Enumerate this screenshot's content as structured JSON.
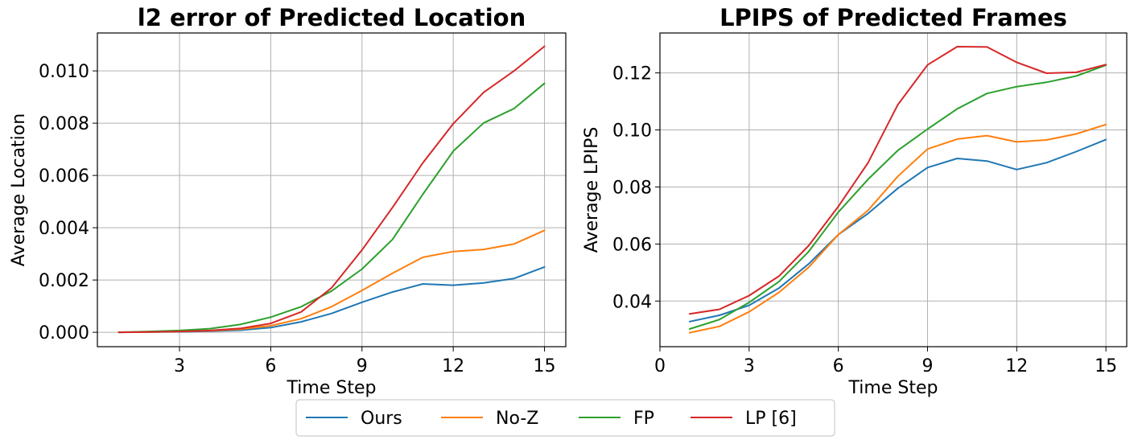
{
  "chart_data": [
    {
      "type": "line",
      "title": "l2 error of Predicted Location",
      "xlabel": "Time Step",
      "ylabel": "Average Location",
      "xlim": [
        0.3,
        15.7
      ],
      "ylim": [
        -0.00055,
        0.01145
      ],
      "xticks": [
        3,
        6,
        9,
        12,
        15
      ],
      "yticks": [
        0.0,
        0.002,
        0.004,
        0.006,
        0.008,
        0.01
      ],
      "ytick_labels": [
        "0.000",
        "0.002",
        "0.004",
        "0.006",
        "0.008",
        "0.010"
      ],
      "grid": true,
      "x": [
        1,
        2,
        3,
        4,
        5,
        6,
        7,
        8,
        9,
        10,
        11,
        12,
        13,
        14,
        15
      ],
      "series": [
        {
          "name": "Ours",
          "color": "#1f77b4",
          "values": [
            0.0,
            1e-05,
            2e-05,
            4e-05,
            8e-05,
            0.00018,
            0.0004,
            0.00072,
            0.00115,
            0.00154,
            0.00185,
            0.0018,
            0.00189,
            0.00206,
            0.0025
          ]
        },
        {
          "name": "No-Z",
          "color": "#ff7f0e",
          "values": [
            0.0,
            1e-05,
            3e-05,
            6e-05,
            0.00012,
            0.00025,
            0.00052,
            0.00098,
            0.0016,
            0.00226,
            0.00287,
            0.00309,
            0.00317,
            0.00338,
            0.0039
          ]
        },
        {
          "name": "FP",
          "color": "#2ca02c",
          "values": [
            0.0,
            3e-05,
            7e-05,
            0.00014,
            0.0003,
            0.00058,
            0.00098,
            0.00158,
            0.00242,
            0.00355,
            0.00528,
            0.00693,
            0.00801,
            0.00856,
            0.00952
          ]
        },
        {
          "name": "LP [6]",
          "color": "#d62728",
          "values": [
            0.0,
            1e-05,
            3e-05,
            7e-05,
            0.00015,
            0.00034,
            0.00078,
            0.0017,
            0.00315,
            0.00477,
            0.00648,
            0.00798,
            0.00918,
            0.01,
            0.01094
          ]
        }
      ]
    },
    {
      "type": "line",
      "title": "LPIPS of Predicted Frames",
      "xlabel": "Time Step",
      "ylabel": "Average LPIPS",
      "xlim": [
        0.0,
        15.7
      ],
      "ylim": [
        0.024,
        0.134
      ],
      "xticks": [
        0,
        3,
        6,
        9,
        12,
        15
      ],
      "yticks": [
        0.04,
        0.06,
        0.08,
        0.1,
        0.12
      ],
      "ytick_labels": [
        "0.04",
        "0.06",
        "0.08",
        "0.10",
        "0.12"
      ],
      "grid": true,
      "x": [
        1,
        2,
        3,
        4,
        5,
        6,
        7,
        8,
        9,
        10,
        11,
        12,
        13,
        14,
        15
      ],
      "series": [
        {
          "name": "Ours",
          "color": "#1f77b4",
          "values": [
            0.0328,
            0.035,
            0.0385,
            0.0445,
            0.053,
            0.0633,
            0.0707,
            0.0795,
            0.0868,
            0.09,
            0.0891,
            0.0861,
            0.0885,
            0.0924,
            0.0966
          ]
        },
        {
          "name": "No-Z",
          "color": "#ff7f0e",
          "values": [
            0.0289,
            0.0311,
            0.0362,
            0.043,
            0.0518,
            0.0633,
            0.0718,
            0.0837,
            0.0933,
            0.0968,
            0.098,
            0.0958,
            0.0965,
            0.0986,
            0.1019
          ]
        },
        {
          "name": "FP",
          "color": "#2ca02c",
          "values": [
            0.0302,
            0.0335,
            0.0395,
            0.0468,
            0.0573,
            0.0712,
            0.0827,
            0.0928,
            0.1003,
            0.1074,
            0.1128,
            0.1152,
            0.1167,
            0.1189,
            0.1227
          ]
        },
        {
          "name": "LP [6]",
          "color": "#d62728",
          "values": [
            0.0355,
            0.0371,
            0.0419,
            0.0487,
            0.0594,
            0.0732,
            0.0885,
            0.1088,
            0.1228,
            0.1292,
            0.1291,
            0.1237,
            0.1199,
            0.1202,
            0.1229
          ]
        }
      ]
    }
  ],
  "legend": {
    "placement": "bottom-center",
    "entries": [
      {
        "label": "Ours",
        "color": "#1f77b4"
      },
      {
        "label": "No-Z",
        "color": "#ff7f0e"
      },
      {
        "label": "FP",
        "color": "#2ca02c"
      },
      {
        "label": "LP [6]",
        "color": "#d62728"
      }
    ]
  }
}
